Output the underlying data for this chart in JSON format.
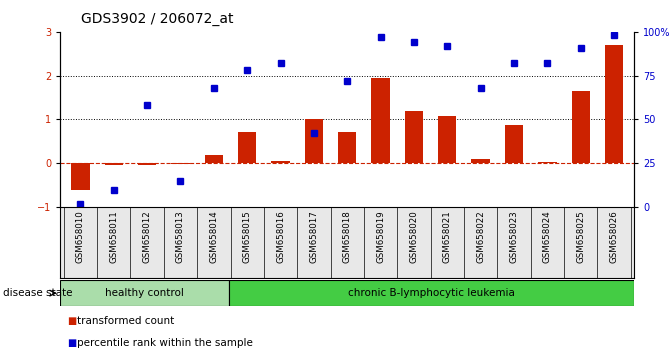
{
  "title": "GDS3902 / 206072_at",
  "samples": [
    "GSM658010",
    "GSM658011",
    "GSM658012",
    "GSM658013",
    "GSM658014",
    "GSM658015",
    "GSM658016",
    "GSM658017",
    "GSM658018",
    "GSM658019",
    "GSM658020",
    "GSM658021",
    "GSM658022",
    "GSM658023",
    "GSM658024",
    "GSM658025",
    "GSM658026"
  ],
  "transformed_count": [
    -0.6,
    -0.05,
    -0.05,
    -0.02,
    0.2,
    0.72,
    0.05,
    1.0,
    0.72,
    1.95,
    1.2,
    1.08,
    0.1,
    0.87,
    0.04,
    1.65,
    2.7
  ],
  "percentile_rank": [
    2,
    10,
    58,
    15,
    68,
    78,
    82,
    42,
    72,
    97,
    94,
    92,
    68,
    82,
    82,
    91,
    98
  ],
  "bar_color": "#cc2200",
  "dot_color": "#0000cc",
  "ylim_left": [
    -1,
    3
  ],
  "ylim_right": [
    0,
    100
  ],
  "yticks_left": [
    -1,
    0,
    1,
    2,
    3
  ],
  "yticks_right": [
    0,
    25,
    50,
    75,
    100
  ],
  "ytick_labels_right": [
    "0",
    "25",
    "50",
    "75",
    "100%"
  ],
  "hline_y": [
    1,
    2
  ],
  "hline_color": "black",
  "zero_line_color": "#cc2200",
  "healthy_control_count": 5,
  "group1_label": "healthy control",
  "group2_label": "chronic B-lymphocytic leukemia",
  "group1_color": "#aaddaa",
  "group2_color": "#44cc44",
  "disease_state_label": "disease state",
  "legend_bar_label": "transformed count",
  "legend_dot_label": "percentile rank within the sample",
  "background_color": "#ffffff",
  "plot_bg_color": "#ffffff",
  "title_fontsize": 10,
  "tick_fontsize": 7,
  "label_fontsize": 7.5
}
